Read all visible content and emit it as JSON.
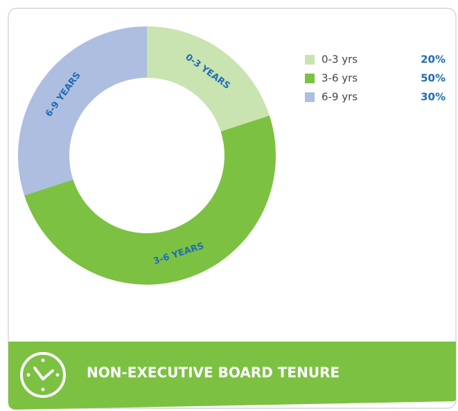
{
  "chart_data": {
    "type": "donut",
    "title": "NON-EXECUTIVE BOARD TENURE",
    "categories": [
      "0-3 yrs",
      "3-6 yrs",
      "6-9 yrs"
    ],
    "segment_labels": [
      "0-3 YEARS",
      "3-6 YEARS",
      "6-9 YEARS"
    ],
    "values": [
      20,
      50,
      30
    ],
    "value_labels": [
      "20%",
      "50%",
      "30%"
    ],
    "colors": [
      "#c9e4b1",
      "#7cc142",
      "#adbee0"
    ],
    "legend": "top-right"
  }
}
